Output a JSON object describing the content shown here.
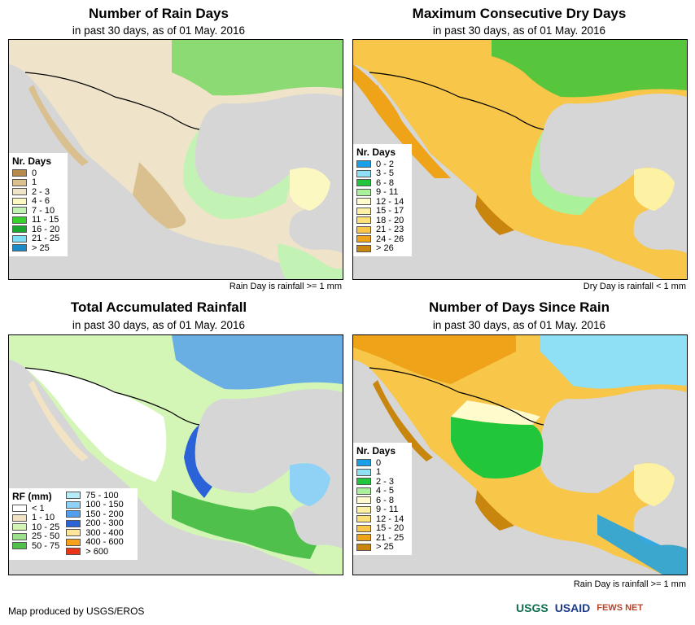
{
  "panels": [
    {
      "title": "Number of Rain Days",
      "subtitle": "in past 30 days, as of 01 May. 2016",
      "note": "Rain Day is rainfall >= 1 mm",
      "legend": {
        "title": "Nr. Days",
        "items": [
          {
            "label": "0",
            "color": "#b58a4c"
          },
          {
            "label": "1",
            "color": "#d9c08e"
          },
          {
            "label": "2 - 3",
            "color": "#efe4c9"
          },
          {
            "label": "4 - 6",
            "color": "#fbf8c2"
          },
          {
            "label": "7 - 10",
            "color": "#c2f2b4"
          },
          {
            "label": "11 - 15",
            "color": "#39d12b"
          },
          {
            "label": "16 - 20",
            "color": "#1aa82e"
          },
          {
            "label": "21 - 25",
            "color": "#7fdcf5"
          },
          {
            "label": "> 25",
            "color": "#1b8ac8"
          }
        ]
      }
    },
    {
      "title": "Maximum Consecutive Dry Days",
      "subtitle": "in past 30 days, as of 01 May. 2016",
      "note": "Dry Day is rainfall < 1 mm",
      "legend": {
        "title": "Nr. Days",
        "items": [
          {
            "label": "0 - 2",
            "color": "#1aa0e6"
          },
          {
            "label": "3 - 5",
            "color": "#8fe0f5"
          },
          {
            "label": "6 - 8",
            "color": "#22c63a"
          },
          {
            "label": "9 - 11",
            "color": "#a9f29a"
          },
          {
            "label": "12 - 14",
            "color": "#fffbcc"
          },
          {
            "label": "15 - 17",
            "color": "#fdf2a4"
          },
          {
            "label": "18 - 20",
            "color": "#fce07a"
          },
          {
            "label": "21 - 23",
            "color": "#f8c648"
          },
          {
            "label": "24 - 26",
            "color": "#eea318"
          },
          {
            "label": "> 26",
            "color": "#c8860f"
          }
        ]
      }
    },
    {
      "title": "Total Accumulated Rainfall",
      "subtitle": "in past 30 days, as of 01 May. 2016",
      "note": "",
      "legend": {
        "title": "RF (mm)",
        "items": [
          {
            "label": "< 1",
            "color": "#ffffff"
          },
          {
            "label": "1 - 10",
            "color": "#f3e3c5"
          },
          {
            "label": "10 - 25",
            "color": "#d3f5b5"
          },
          {
            "label": "25 - 50",
            "color": "#9ce28c"
          },
          {
            "label": "50 - 75",
            "color": "#4fc04c"
          }
        ],
        "items2": [
          {
            "label": "75 - 100",
            "color": "#b6ecf7"
          },
          {
            "label": "100 - 150",
            "color": "#8fd2f5"
          },
          {
            "label": "150 - 200",
            "color": "#4f9ef0"
          },
          {
            "label": "200 - 300",
            "color": "#2b62d8"
          },
          {
            "label": "300 - 400",
            "color": "#fde59a"
          },
          {
            "label": "400 - 600",
            "color": "#f7a21a"
          },
          {
            "label": "> 600",
            "color": "#e83418"
          }
        ]
      }
    },
    {
      "title": "Number of Days Since Rain",
      "subtitle": "in past 30 days, as of 01 May. 2016",
      "note": "Rain Day is rainfall >= 1 mm",
      "legend": {
        "title": "Nr. Days",
        "items": [
          {
            "label": "0",
            "color": "#1aa0e6"
          },
          {
            "label": "1",
            "color": "#8fe0f5"
          },
          {
            "label": "2 - 3",
            "color": "#22c63a"
          },
          {
            "label": "4 - 5",
            "color": "#a9f29a"
          },
          {
            "label": "6 - 8",
            "color": "#fffbcc"
          },
          {
            "label": "9 - 11",
            "color": "#fdf2a4"
          },
          {
            "label": "12 - 14",
            "color": "#fce07a"
          },
          {
            "label": "15 - 20",
            "color": "#f8c648"
          },
          {
            "label": "21 - 25",
            "color": "#eea318"
          },
          {
            "label": "> 25",
            "color": "#c8860f"
          }
        ]
      }
    }
  ],
  "footer": "Map produced by USGS/EROS",
  "logos": [
    "USGS",
    "USAID",
    "FEWS NET"
  ],
  "colors": {
    "ocean": "#d6d6d6",
    "usgs": "#0b6e4f",
    "usaid": "#1b3a8a",
    "fews": "#b5452a"
  }
}
